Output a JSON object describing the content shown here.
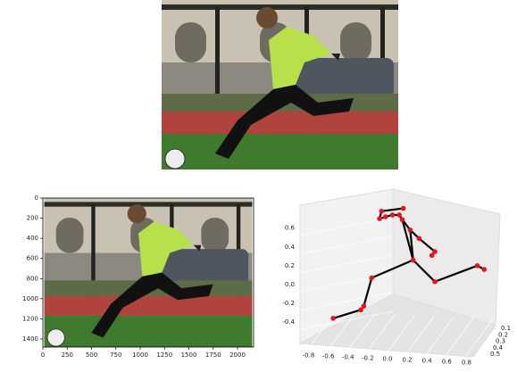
{
  "chart_data": [
    {
      "type": "image",
      "xlim": [
        0,
        2165
      ],
      "ylim": [
        1480,
        0
      ],
      "xticks": [
        0,
        250,
        500,
        750,
        1000,
        1250,
        1500,
        1750,
        2000
      ],
      "yticks": [
        0,
        200,
        400,
        600,
        800,
        1000,
        1200,
        1400
      ]
    },
    {
      "type": "scatter3d",
      "color": "#e8141c",
      "line_color": "#000000",
      "xlim": [
        -0.94,
        1.14
      ],
      "ylim": [
        -0.58,
        0.92
      ],
      "x": [
        0.16,
        -0.06,
        -0.08,
        -0.02,
        0.05,
        0.12,
        0.15,
        0.23,
        0.32,
        0.48,
        0.45,
        0.26,
        -0.16,
        -0.24,
        -0.27,
        -0.55,
        0.48,
        0.91,
        0.98
      ],
      "y": [
        0.81,
        0.78,
        0.7,
        0.72,
        0.74,
        0.74,
        0.69,
        0.58,
        0.49,
        0.35,
        0.31,
        0.26,
        0.07,
        -0.23,
        -0.27,
        -0.36,
        0.03,
        0.2,
        0.16
      ],
      "edges": [
        [
          0,
          1
        ],
        [
          1,
          2
        ],
        [
          2,
          3
        ],
        [
          3,
          4
        ],
        [
          4,
          5
        ],
        [
          5,
          6
        ],
        [
          6,
          7
        ],
        [
          7,
          8
        ],
        [
          8,
          9
        ],
        [
          9,
          10
        ],
        [
          7,
          11
        ],
        [
          6,
          11
        ],
        [
          11,
          12
        ],
        [
          12,
          13
        ],
        [
          13,
          14
        ],
        [
          14,
          15
        ],
        [
          11,
          16
        ],
        [
          16,
          17
        ],
        [
          17,
          18
        ]
      ],
      "xticks": [
        -0.8,
        -0.6,
        -0.4,
        -0.2,
        {
          "value": 0,
          "label": "0.0"
        },
        0.2,
        0.4,
        0.6,
        0.8
      ],
      "yticks": [
        0.6,
        0.4,
        0.2,
        {
          "value": 0,
          "label": "0.0"
        },
        -0.2,
        -0.4
      ],
      "depth_ticks": [
        0.1,
        0.2,
        0.3,
        0.4,
        0.5
      ]
    }
  ]
}
